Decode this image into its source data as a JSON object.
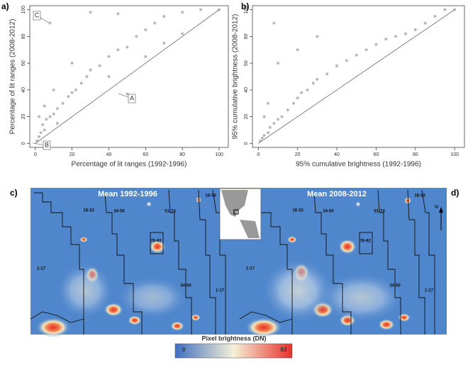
{
  "chart_data": [
    {
      "type": "scatter",
      "panel": "a)",
      "x_label": "Percentage of lit ranges (1992-1996)",
      "y_label": "Percentage of lit ranges (2008-2012)",
      "x": [
        1,
        2,
        3,
        5,
        4,
        6,
        8,
        10,
        12,
        15,
        18,
        20,
        22,
        25,
        28,
        30,
        35,
        40,
        45,
        50,
        55,
        60,
        65,
        70,
        80,
        90,
        100,
        8,
        30,
        45,
        2,
        5,
        10,
        20,
        50,
        60,
        70,
        80,
        40,
        12
      ],
      "y": [
        2,
        5,
        8,
        10,
        14,
        18,
        20,
        22,
        26,
        30,
        35,
        38,
        40,
        45,
        50,
        55,
        58,
        65,
        70,
        72,
        80,
        85,
        90,
        95,
        98,
        100,
        100,
        90,
        98,
        97,
        20,
        28,
        40,
        60,
        37,
        65,
        75,
        82,
        50,
        15
      ],
      "color": "#8a8a8a",
      "xlim": [
        -3,
        105
      ],
      "ylim": [
        -3,
        103
      ],
      "xticks": [
        0,
        20,
        40,
        60,
        80,
        100
      ],
      "yticks": [
        0,
        20,
        40,
        60,
        80,
        100
      ],
      "annotations": [
        "A",
        "B",
        "C"
      ]
    },
    {
      "type": "scatter",
      "panel": "b)",
      "x_label": "95% cumulative brightness (1992-1996)",
      "y_label": "95% cumulative brightness (2008-2012)",
      "x": [
        1,
        2,
        3,
        5,
        6,
        8,
        10,
        12,
        15,
        18,
        20,
        22,
        25,
        28,
        30,
        35,
        40,
        45,
        50,
        55,
        60,
        65,
        70,
        75,
        80,
        85,
        90,
        95,
        100,
        5,
        10,
        20,
        8,
        30,
        3
      ],
      "y": [
        2,
        4,
        6,
        8,
        12,
        15,
        18,
        20,
        25,
        30,
        34,
        38,
        40,
        45,
        48,
        52,
        58,
        62,
        66,
        70,
        74,
        78,
        80,
        82,
        85,
        90,
        95,
        100,
        100,
        30,
        60,
        70,
        90,
        80,
        20
      ],
      "color": "#8a8a8a",
      "xlim": [
        -3,
        105
      ],
      "ylim": [
        -3,
        103
      ],
      "xticks": [
        0,
        20,
        40,
        60,
        80,
        100
      ],
      "yticks": [
        0,
        20,
        40,
        60,
        80,
        100
      ]
    }
  ],
  "maps": {
    "left": {
      "panel": "c)",
      "title": "Mean 1992-1996",
      "zones": [
        "18-33",
        "34-50",
        "51-74",
        "18-33",
        "76-92",
        "1-17",
        "34-50",
        "1-17"
      ]
    },
    "right": {
      "panel": "d)",
      "title": "Mean 2008-2012",
      "zones": [
        "18-33",
        "34-50",
        "51-74",
        "18-33",
        "76-92",
        "1-17",
        "34-50",
        "1-17"
      ]
    },
    "north": "N",
    "colorbar": {
      "title": "Pixel brightness  (DN)",
      "ticks": [
        0,
        63
      ]
    }
  }
}
